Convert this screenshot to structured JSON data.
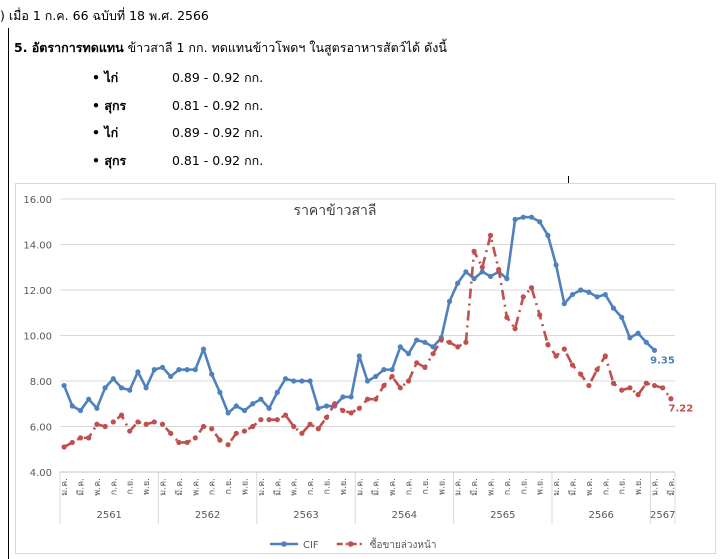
{
  "document": {
    "source_line": ") เมื่อ 1 ก.ค. 66 ฉบับที่ 18 พ.ศ. 2566",
    "section_heading": "5. อัตราการทดแทน",
    "section_text": "ข้าวสาลี 1 กก. ทดแทนข้าวโพดฯ ในสูตรอาหารสัตว์ได้ ดังนี้",
    "items": [
      {
        "animal": "• ไก่",
        "rate": "0.89 - 0.92 กก."
      },
      {
        "animal": "• สุกร",
        "rate": "0.81 - 0.92 กก."
      },
      {
        "animal": "• ไก่",
        "rate": "0.89 - 0.92 กก."
      },
      {
        "animal": "• สุกร",
        "rate": "0.81 - 0.92 กก."
      }
    ]
  },
  "chart_data": {
    "type": "line",
    "title": "ราคาข้าวสาลี",
    "categories": [
      "ม.ค.",
      null,
      "มี.ค.",
      null,
      "พ.ค.",
      null,
      "ก.ค.",
      null,
      "ก.ย.",
      null,
      "พ.ย.",
      null,
      "ม.ค.",
      null,
      "มี.ค.",
      null,
      "พ.ค.",
      null,
      "ก.ค.",
      null,
      "ก.ย.",
      null,
      "พ.ย.",
      null,
      "ม.ค.",
      null,
      "มี.ค.",
      null,
      "พ.ค.",
      null,
      "ก.ค.",
      null,
      "ก.ย.",
      null,
      "พ.ย.",
      null,
      "ม.ค.",
      null,
      "มี.ค.",
      null,
      "พ.ค.",
      null,
      "ก.ค.",
      null,
      "ก.ย.",
      null,
      "พ.ย.",
      null,
      "ม.ค.",
      null,
      "มี.ค.",
      null,
      "พ.ค.",
      null,
      "ก.ค.",
      null,
      "ก.ย.",
      null,
      "พ.ย.",
      null,
      "ม.ค.",
      null,
      "มี.ค.",
      null,
      "พ.ค.",
      null,
      "ก.ค.",
      null,
      "ก.ย.",
      null,
      "พ.ย.",
      null,
      "ม.ค.",
      null,
      "มี.ค."
    ],
    "year_groups": [
      "2561",
      "2562",
      "2563",
      "2564",
      "2565",
      "2566",
      "2567"
    ],
    "series": [
      {
        "name": "CIF",
        "color": "#4f81bd",
        "style": "solid",
        "values": [
          7.8,
          6.9,
          6.7,
          7.2,
          6.8,
          7.7,
          8.1,
          7.7,
          7.6,
          8.4,
          7.7,
          8.5,
          8.6,
          8.2,
          8.5,
          8.5,
          8.5,
          9.4,
          8.3,
          7.5,
          6.6,
          6.9,
          6.7,
          7.0,
          7.2,
          6.8,
          7.5,
          8.1,
          8.0,
          8.0,
          8.0,
          6.8,
          6.9,
          6.9,
          7.3,
          7.3,
          9.1,
          8.0,
          8.2,
          8.5,
          8.5,
          9.5,
          9.2,
          9.8,
          9.7,
          9.5,
          9.9,
          11.5,
          12.3,
          12.8,
          12.5,
          12.8,
          12.6,
          12.8,
          12.5,
          15.1,
          15.2,
          15.2,
          15.0,
          14.4,
          13.1,
          11.4,
          11.8,
          12.0,
          11.9,
          11.7,
          11.8,
          11.2,
          10.8,
          9.9,
          10.1,
          9.7,
          9.35,
          null,
          null
        ]
      },
      {
        "name": "ซื้อขายล่วงหน้า",
        "color": "#c0504d",
        "style": "dashdot",
        "values": [
          5.1,
          5.3,
          5.5,
          5.5,
          6.1,
          6.0,
          6.2,
          6.5,
          5.8,
          6.2,
          6.1,
          6.2,
          6.1,
          5.7,
          5.3,
          5.3,
          5.5,
          6.0,
          5.9,
          5.4,
          5.2,
          5.7,
          5.8,
          6.0,
          6.3,
          6.3,
          6.3,
          6.5,
          6.0,
          5.7,
          6.1,
          5.9,
          6.4,
          7.0,
          6.7,
          6.6,
          6.8,
          7.2,
          7.2,
          7.8,
          8.2,
          7.7,
          8.0,
          8.8,
          8.6,
          9.2,
          9.8,
          9.7,
          9.5,
          9.7,
          13.7,
          13.0,
          14.4,
          12.9,
          10.8,
          10.3,
          11.7,
          12.1,
          10.9,
          9.6,
          9.1,
          9.4,
          8.7,
          8.3,
          7.8,
          8.5,
          9.1,
          7.9,
          7.6,
          7.7,
          7.4,
          7.9,
          7.8,
          7.7,
          7.22
        ]
      }
    ],
    "ylim": [
      4,
      16
    ],
    "yticks": [
      {
        "value": 4,
        "label": "4.00"
      },
      {
        "value": 6,
        "label": "6.00"
      },
      {
        "value": 8,
        "label": "8.00"
      },
      {
        "value": 10,
        "label": "10.00"
      },
      {
        "value": 12,
        "label": "12.00"
      },
      {
        "value": 14,
        "label": "14.00"
      },
      {
        "value": 16,
        "label": "16.00"
      }
    ],
    "grid": true,
    "legend": "bottom"
  }
}
